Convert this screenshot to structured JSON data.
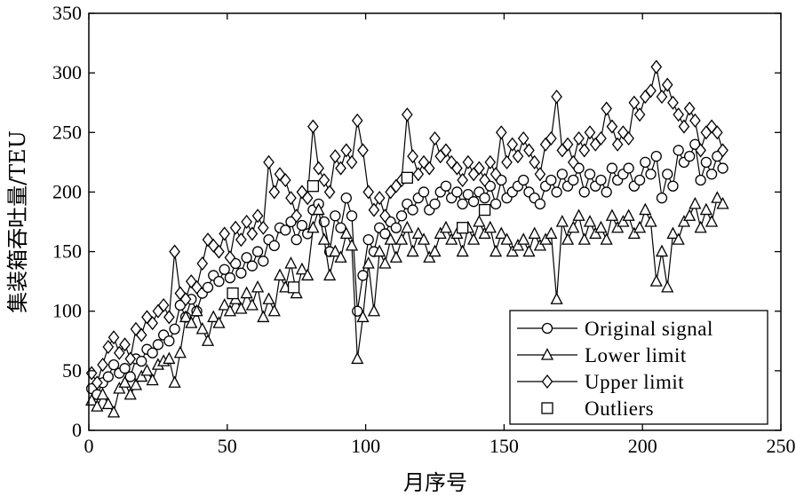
{
  "chart_data": {
    "type": "line",
    "xlabel": "月序号",
    "ylabel": "集装箱吞吐量/TEU",
    "xlim": [
      0,
      250
    ],
    "ylim": [
      0,
      350
    ],
    "xticks": [
      0,
      50,
      100,
      150,
      200,
      250
    ],
    "yticks": [
      0,
      50,
      100,
      150,
      200,
      250,
      300,
      350
    ],
    "grid": false,
    "legend_position": "bottom-right",
    "series": [
      {
        "name": "Original signal",
        "marker": "circle",
        "x": [
          1,
          3,
          5,
          7,
          9,
          11,
          13,
          15,
          17,
          19,
          21,
          23,
          25,
          27,
          29,
          31,
          33,
          35,
          37,
          39,
          41,
          43,
          45,
          47,
          49,
          51,
          53,
          55,
          57,
          59,
          61,
          63,
          65,
          67,
          69,
          71,
          73,
          75,
          77,
          79,
          81,
          83,
          85,
          87,
          89,
          91,
          93,
          95,
          97,
          99,
          101,
          103,
          105,
          107,
          109,
          111,
          113,
          115,
          117,
          119,
          121,
          123,
          125,
          127,
          129,
          131,
          133,
          135,
          137,
          139,
          141,
          143,
          145,
          147,
          149,
          151,
          153,
          155,
          157,
          159,
          161,
          163,
          165,
          167,
          169,
          171,
          173,
          175,
          177,
          179,
          181,
          183,
          185,
          187,
          189,
          191,
          193,
          195,
          197,
          199,
          201,
          203,
          205,
          207,
          209,
          211,
          213,
          215,
          217,
          219,
          221,
          223,
          225,
          227,
          229
        ],
        "values": [
          35,
          30,
          40,
          45,
          55,
          48,
          52,
          45,
          60,
          58,
          68,
          65,
          72,
          80,
          75,
          85,
          105,
          95,
          110,
          100,
          115,
          120,
          130,
          125,
          135,
          128,
          140,
          132,
          145,
          138,
          150,
          142,
          160,
          155,
          170,
          168,
          175,
          160,
          172,
          165,
          185,
          190,
          175,
          150,
          180,
          170,
          195,
          180,
          100,
          130,
          160,
          150,
          170,
          165,
          175,
          170,
          180,
          190,
          185,
          195,
          200,
          185,
          190,
          200,
          205,
          195,
          200,
          190,
          198,
          192,
          200,
          195,
          205,
          190,
          210,
          195,
          200,
          205,
          210,
          200,
          195,
          190,
          205,
          210,
          200,
          215,
          205,
          210,
          220,
          200,
          215,
          205,
          210,
          200,
          220,
          210,
          215,
          220,
          205,
          210,
          225,
          215,
          230,
          195,
          215,
          205,
          235,
          225,
          230,
          240,
          210,
          225,
          215,
          230,
          220
        ]
      },
      {
        "name": "Lower limit",
        "marker": "triangle",
        "x": [
          1,
          3,
          5,
          7,
          9,
          11,
          13,
          15,
          17,
          19,
          21,
          23,
          25,
          27,
          29,
          31,
          33,
          35,
          37,
          39,
          41,
          43,
          45,
          47,
          49,
          51,
          53,
          55,
          57,
          59,
          61,
          63,
          65,
          67,
          69,
          71,
          73,
          75,
          77,
          79,
          81,
          83,
          85,
          87,
          89,
          91,
          93,
          95,
          97,
          99,
          101,
          103,
          105,
          107,
          109,
          111,
          113,
          115,
          117,
          119,
          121,
          123,
          125,
          127,
          129,
          131,
          133,
          135,
          137,
          139,
          141,
          143,
          145,
          147,
          149,
          151,
          153,
          155,
          157,
          159,
          161,
          163,
          165,
          167,
          169,
          171,
          173,
          175,
          177,
          179,
          181,
          183,
          185,
          187,
          189,
          191,
          193,
          195,
          197,
          199,
          201,
          203,
          205,
          207,
          209,
          211,
          213,
          215,
          217,
          219,
          221,
          223,
          225,
          227,
          229
        ],
        "values": [
          25,
          20,
          30,
          22,
          15,
          35,
          40,
          30,
          38,
          45,
          50,
          42,
          55,
          58,
          60,
          40,
          65,
          95,
          90,
          100,
          85,
          75,
          95,
          90,
          105,
          100,
          110,
          102,
          115,
          105,
          120,
          95,
          110,
          100,
          130,
          120,
          140,
          115,
          135,
          130,
          170,
          185,
          160,
          130,
          150,
          145,
          165,
          155,
          60,
          95,
          140,
          100,
          150,
          140,
          160,
          145,
          160,
          170,
          150,
          165,
          160,
          145,
          150,
          165,
          170,
          160,
          165,
          150,
          170,
          160,
          175,
          165,
          170,
          150,
          165,
          160,
          150,
          155,
          160,
          150,
          165,
          155,
          160,
          165,
          110,
          175,
          160,
          170,
          180,
          160,
          175,
          165,
          170,
          160,
          180,
          170,
          175,
          180,
          165,
          170,
          185,
          175,
          125,
          150,
          120,
          165,
          160,
          175,
          180,
          190,
          170,
          185,
          175,
          195,
          190
        ]
      },
      {
        "name": "Upper limit",
        "marker": "diamond",
        "x": [
          1,
          3,
          5,
          7,
          9,
          11,
          13,
          15,
          17,
          19,
          21,
          23,
          25,
          27,
          29,
          31,
          33,
          35,
          37,
          39,
          41,
          43,
          45,
          47,
          49,
          51,
          53,
          55,
          57,
          59,
          61,
          63,
          65,
          67,
          69,
          71,
          73,
          75,
          77,
          79,
          81,
          83,
          85,
          87,
          89,
          91,
          93,
          95,
          97,
          99,
          101,
          103,
          105,
          107,
          109,
          111,
          113,
          115,
          117,
          119,
          121,
          123,
          125,
          127,
          129,
          131,
          133,
          135,
          137,
          139,
          141,
          143,
          145,
          147,
          149,
          151,
          153,
          155,
          157,
          159,
          161,
          163,
          165,
          167,
          169,
          171,
          173,
          175,
          177,
          179,
          181,
          183,
          185,
          187,
          189,
          191,
          193,
          195,
          197,
          199,
          201,
          203,
          205,
          207,
          209,
          211,
          213,
          215,
          217,
          219,
          221,
          223,
          225,
          227,
          229
        ],
        "values": [
          48,
          40,
          55,
          70,
          78,
          65,
          72,
          60,
          85,
          80,
          95,
          90,
          100,
          105,
          95,
          150,
          115,
          110,
          125,
          120,
          140,
          160,
          155,
          150,
          165,
          145,
          170,
          160,
          175,
          165,
          180,
          170,
          225,
          200,
          215,
          210,
          195,
          180,
          200,
          195,
          255,
          220,
          210,
          200,
          230,
          220,
          235,
          225,
          260,
          235,
          200,
          185,
          195,
          180,
          200,
          205,
          210,
          265,
          230,
          215,
          225,
          220,
          245,
          230,
          235,
          225,
          220,
          210,
          225,
          215,
          220,
          210,
          225,
          215,
          250,
          225,
          240,
          230,
          245,
          235,
          225,
          215,
          240,
          245,
          280,
          235,
          240,
          225,
          245,
          235,
          250,
          240,
          245,
          270,
          255,
          240,
          250,
          245,
          275,
          265,
          280,
          285,
          305,
          280,
          290,
          275,
          265,
          255,
          270,
          260,
          235,
          250,
          255,
          250,
          235
        ]
      },
      {
        "name": "Outliers",
        "marker": "square",
        "x": [
          52,
          74,
          81,
          115,
          135,
          143
        ],
        "values": [
          115,
          120,
          205,
          212,
          170,
          185
        ]
      }
    ]
  }
}
